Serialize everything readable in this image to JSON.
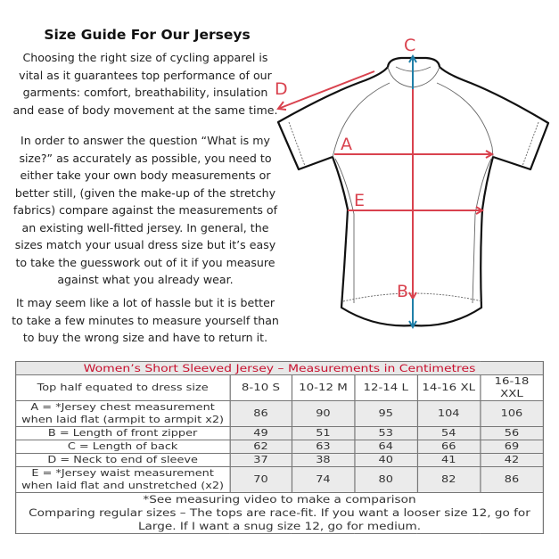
{
  "title": "Size Guide For Our Jerseys",
  "paragraphs": [
    "Choosing the right size of cycling apparel is vital as it guarantees top performance of our garments: comfort, breathability, insulation and ease of body movement at the same time.",
    "In order to answer the question “What is my size?” as accurately as possible, you need to either take your own body measurements or better still, (given the make-up of the stretchy fabrics) compare against the measurements of an existing well-fitted jersey. In general, the sizes match your usual dress size but it’s easy to take the guesswork out of it if you measure against what you already wear.",
    "It may seem like a lot of hassle but it is better to take a few minutes to measure yourself than to buy the wrong size and have to return it."
  ],
  "diagram": {
    "labels": {
      "A": "A",
      "B": "B",
      "C": "C",
      "D": "D",
      "E": "E"
    },
    "colors": {
      "measure_line": "#d9424e",
      "length_arrow": "#1f7fa8",
      "outline": "#111111"
    }
  },
  "table": {
    "title": "Women’s Short Sleeved Jersey – Measurements in Centimetres",
    "header_label": "Top half equated to dress size",
    "sizes": [
      "8-10 S",
      "10-12 M",
      "12-14 L",
      "14-16 XL",
      "16-18 XXL"
    ],
    "rows": [
      {
        "label": "A = *Jersey chest measurement when laid flat (armpit to armpit x2)",
        "values": [
          "86",
          "90",
          "95",
          "104",
          "106"
        ]
      },
      {
        "label": "B = Length of front zipper",
        "values": [
          "49",
          "51",
          "53",
          "54",
          "56"
        ]
      },
      {
        "label": "C = Length of back",
        "values": [
          "62",
          "63",
          "64",
          "66",
          "69"
        ]
      },
      {
        "label": "D = Neck to end of sleeve",
        "values": [
          "37",
          "38",
          "40",
          "41",
          "42"
        ]
      },
      {
        "label": "E = *Jersey waist measurement when laid flat and unstretched (x2)",
        "values": [
          "70",
          "74",
          "80",
          "82",
          "86"
        ]
      }
    ],
    "footnote": "*See measuring video to make a comparison",
    "note": "Comparing regular sizes – The tops are race-fit. If you want a looser size 12, go for Large. If I want a snug size 12, go for medium."
  }
}
